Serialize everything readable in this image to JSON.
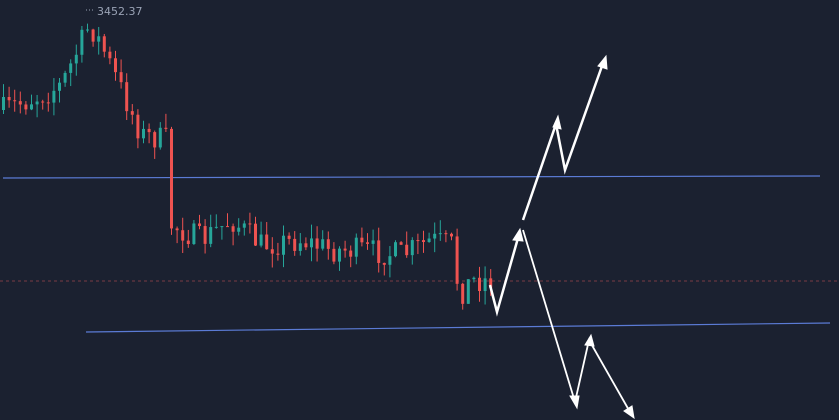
{
  "price_label": "3452.37"
}
